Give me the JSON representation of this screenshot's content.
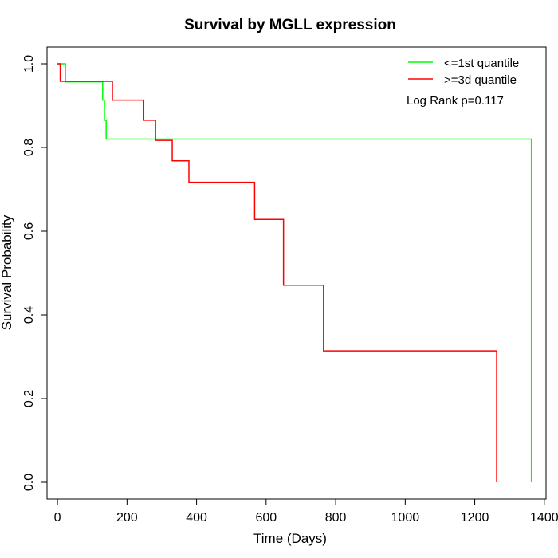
{
  "chart_data": {
    "type": "line",
    "subtype": "kaplan-meier-step",
    "title": "Survival by MGLL expression",
    "xlabel": "Time (Days)",
    "ylabel": "Survival Probability",
    "xlim": [
      -30,
      1405
    ],
    "ylim": [
      -0.04,
      1.04
    ],
    "x_ticks": [
      0,
      200,
      400,
      600,
      800,
      1000,
      1200,
      1400
    ],
    "y_ticks": [
      0.0,
      0.2,
      0.4,
      0.6,
      0.8,
      1.0
    ],
    "y_tick_labels": [
      "0.0",
      "0.2",
      "0.4",
      "0.6",
      "0.8",
      "1.0"
    ],
    "grid": false,
    "legend_position": "top-right",
    "annotation": "Log Rank p=0.117",
    "series": [
      {
        "name": "<=1st quantile",
        "color": "#00ff00",
        "x": [
          0,
          23,
          130,
          135,
          140,
          1363
        ],
        "y": [
          1.0,
          0.957,
          0.913,
          0.865,
          0.82,
          0.0
        ]
      },
      {
        "name": ">=3d quantile",
        "color": "#ff0000",
        "x": [
          0,
          8,
          158,
          248,
          282,
          330,
          378,
          567,
          650,
          765,
          1263
        ],
        "y": [
          1.0,
          0.958,
          0.913,
          0.865,
          0.817,
          0.768,
          0.717,
          0.628,
          0.471,
          0.314,
          0.0
        ]
      }
    ]
  }
}
